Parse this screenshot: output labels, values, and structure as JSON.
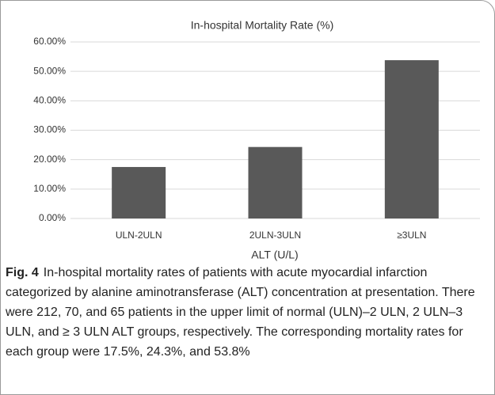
{
  "chart_data": {
    "type": "bar",
    "title": "In-hospital Mortality Rate (%)",
    "x_label": "ALT (U/L)",
    "categories": [
      "ULN-2ULN",
      "2ULN-3ULN",
      "≥3ULN"
    ],
    "values": [
      17.5,
      24.3,
      53.8
    ],
    "color": "#595959",
    "ylim": [
      0,
      60
    ],
    "yticks": [
      {
        "value": 0,
        "label": "0.00%"
      },
      {
        "value": 10,
        "label": "10.00%"
      },
      {
        "value": 20,
        "label": "20.00%"
      },
      {
        "value": 30,
        "label": "30.00%"
      },
      {
        "value": 40,
        "label": "40.00%"
      },
      {
        "value": 50,
        "label": "50.00%"
      },
      {
        "value": 60,
        "label": "60.00%"
      }
    ],
    "grid": true
  },
  "caption": {
    "label": "Fig. 4",
    "text": "In-hospital mortality rates of patients with acute myocardial infarction categorized by alanine aminotransferase (ALT) concentration at presentation. There were 212, 70, and 65 patients in the upper limit of normal (ULN)–2 ULN, 2 ULN–3 ULN, and ≥ 3 ULN ALT groups, respectively. The corresponding mortality rates for each group were 17.5%, 24.3%, and 53.8%"
  }
}
